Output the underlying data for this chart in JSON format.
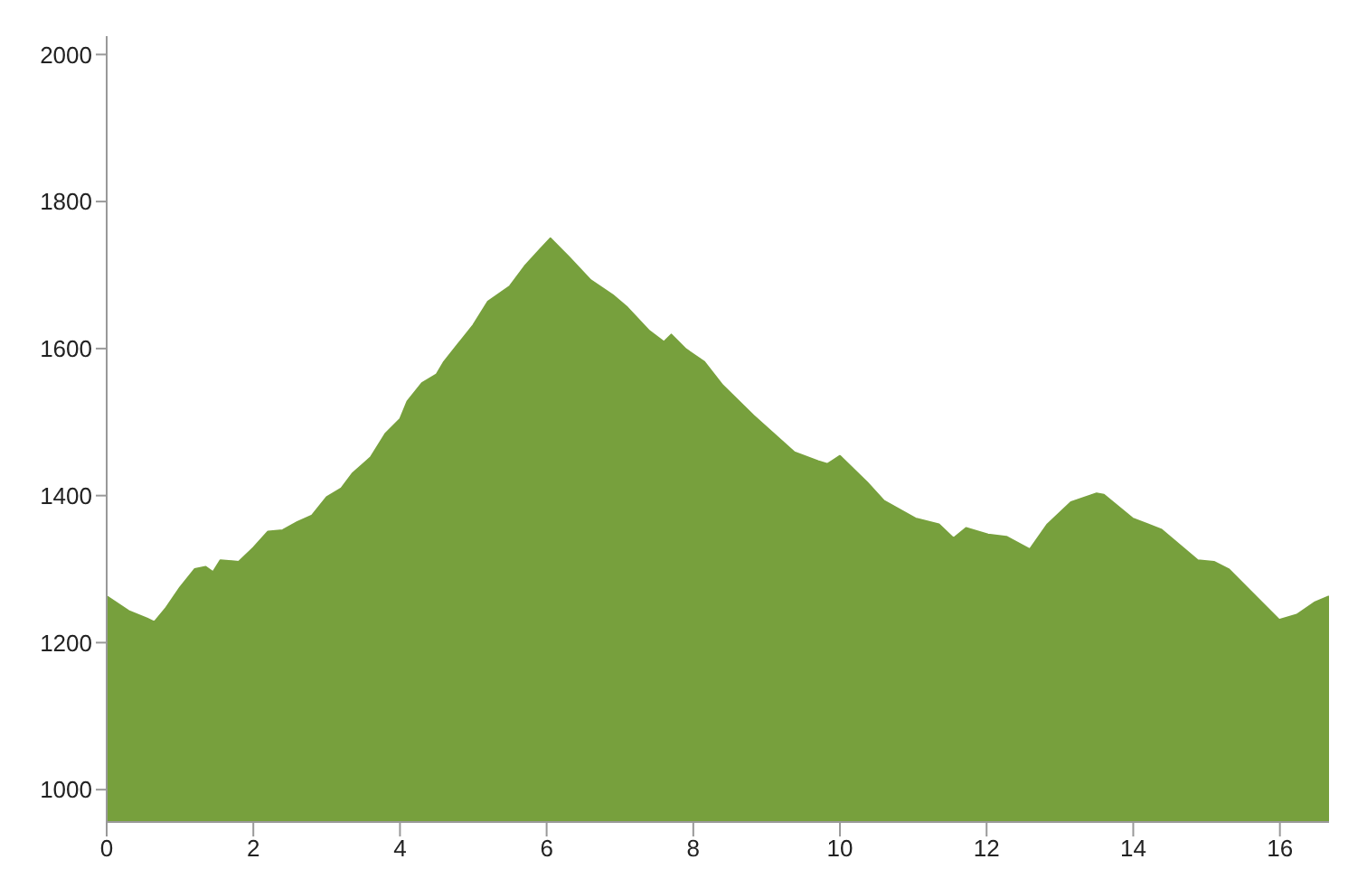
{
  "chart_data": {
    "type": "area",
    "x": [
      0,
      0.3,
      0.55,
      0.65,
      0.8,
      1.0,
      1.2,
      1.35,
      1.45,
      1.55,
      1.8,
      2.0,
      2.2,
      2.4,
      2.6,
      2.8,
      3.0,
      3.2,
      3.35,
      3.6,
      3.8,
      4.0,
      4.1,
      4.3,
      4.5,
      4.6,
      4.8,
      5.0,
      5.2,
      5.5,
      5.7,
      5.9,
      6.05,
      6.3,
      6.6,
      6.9,
      7.1,
      7.4,
      7.6,
      7.7,
      7.9,
      8.15,
      8.4,
      8.82,
      9.38,
      9.7,
      9.83,
      10.0,
      10.37,
      10.6,
      11.03,
      11.35,
      11.55,
      11.72,
      12.02,
      12.27,
      12.59,
      12.83,
      13.15,
      13.5,
      13.6,
      13.99,
      14.38,
      14.88,
      15.1,
      15.3,
      15.6,
      15.99,
      16.23,
      16.48,
      16.67
    ],
    "series": [
      {
        "color": "#77a03d",
        "values": [
          1263,
          1243,
          1233,
          1228,
          1246,
          1275,
          1300,
          1303,
          1296,
          1312,
          1310,
          1329,
          1351,
          1353,
          1364,
          1373,
          1398,
          1410,
          1430,
          1452,
          1484,
          1504,
          1528,
          1553,
          1565,
          1582,
          1607,
          1632,
          1664,
          1685,
          1712,
          1734,
          1750,
          1725,
          1693,
          1673,
          1656,
          1624,
          1609,
          1619,
          1599,
          1582,
          1550,
          1509,
          1459,
          1447,
          1443,
          1454,
          1418,
          1393,
          1369,
          1361,
          1342,
          1356,
          1347,
          1344,
          1327,
          1361,
          1391,
          1403,
          1401,
          1369,
          1354,
          1312,
          1310,
          1300,
          1270,
          1231,
          1238,
          1255,
          1263
        ]
      }
    ],
    "xlim": [
      0,
      16.67
    ],
    "xticks": [
      0,
      2,
      4,
      6,
      8,
      10,
      12,
      14,
      16
    ],
    "ylim": [
      956,
      2025
    ],
    "yticks": [
      1000,
      1200,
      1400,
      1600,
      1800,
      2000
    ],
    "grid": false,
    "marker": "none",
    "line_style": "solid"
  }
}
